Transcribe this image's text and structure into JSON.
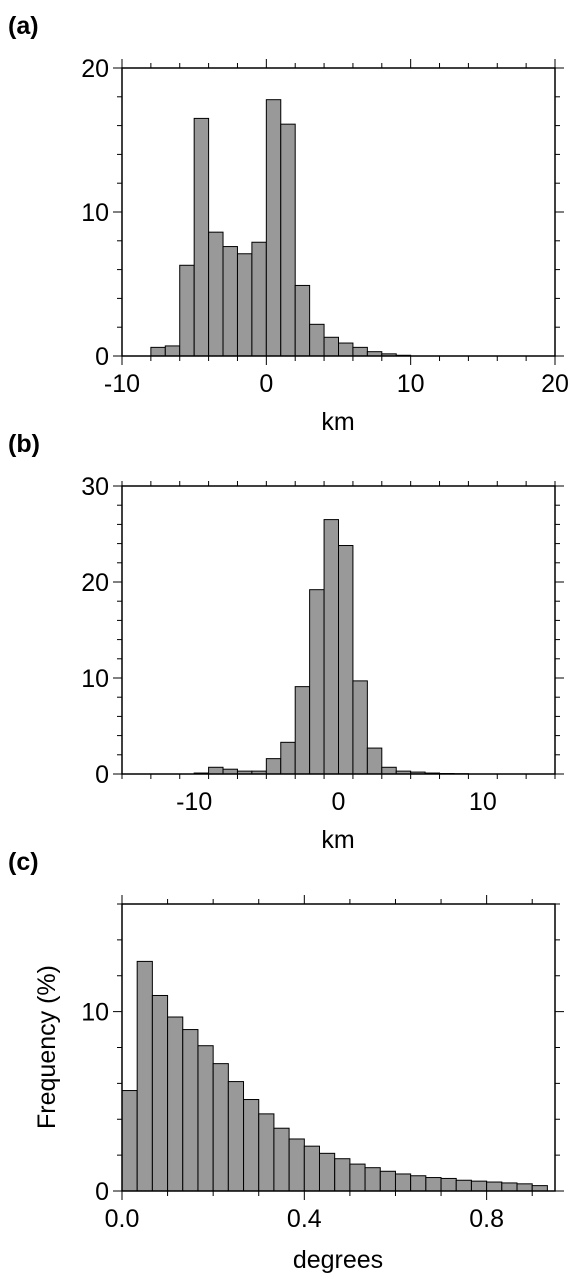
{
  "chart_data": [
    {
      "type": "bar",
      "panel": "(a)",
      "xlabel": "km",
      "ylabel": "",
      "xlim": [
        -10,
        20
      ],
      "ylim": [
        0,
        20
      ],
      "xticks": [
        -10,
        0,
        10,
        20
      ],
      "yticks": [
        0,
        10,
        20
      ],
      "xminor": 2,
      "yminor": 2,
      "bin_width": 1,
      "bin_starts": [
        -8,
        -7,
        -6,
        -5,
        -4,
        -3,
        -2,
        -1,
        0,
        1,
        2,
        3,
        4,
        5,
        6,
        7,
        8,
        9
      ],
      "values": [
        0.6,
        0.7,
        6.3,
        16.5,
        8.6,
        7.6,
        7.1,
        7.9,
        17.8,
        16.1,
        4.9,
        2.2,
        1.3,
        0.9,
        0.6,
        0.3,
        0.15,
        0.05
      ]
    },
    {
      "type": "bar",
      "panel": "(b)",
      "xlabel": "km",
      "ylabel": "",
      "xlim": [
        -15,
        15
      ],
      "ylim": [
        0,
        30
      ],
      "xticks": [
        -10,
        0,
        10
      ],
      "yticks": [
        0,
        10,
        20,
        30
      ],
      "xminor": 2,
      "yminor": 2,
      "bin_width": 1,
      "bin_starts": [
        -10,
        -9,
        -8,
        -7,
        -6,
        -5,
        -4,
        -3,
        -2,
        -1,
        0,
        1,
        2,
        3,
        4,
        5,
        6,
        7,
        8
      ],
      "values": [
        0.1,
        0.7,
        0.5,
        0.3,
        0.3,
        1.6,
        3.3,
        9.1,
        19.2,
        26.5,
        23.8,
        9.7,
        2.7,
        0.7,
        0.3,
        0.2,
        0.1,
        0.05,
        0.03
      ]
    },
    {
      "type": "bar",
      "panel": "(c)",
      "xlabel": "degrees",
      "ylabel": "Frequency (%)",
      "xlim": [
        0,
        0.95
      ],
      "ylim": [
        0,
        16
      ],
      "xticks": [
        0.0,
        0.4,
        0.8
      ],
      "xtick_labels": [
        "0.0",
        "0.4",
        "0.8"
      ],
      "yticks": [
        0,
        10
      ],
      "xminor": 0.1,
      "yminor": 2,
      "bin_width": 0.0333,
      "bin_starts": [
        0.0,
        0.0333,
        0.0667,
        0.1,
        0.1333,
        0.1667,
        0.2,
        0.2333,
        0.2667,
        0.3,
        0.3333,
        0.3667,
        0.4,
        0.4333,
        0.4667,
        0.5,
        0.5333,
        0.5667,
        0.6,
        0.6333,
        0.6667,
        0.7,
        0.7333,
        0.7667,
        0.8,
        0.8333,
        0.8667,
        0.9
      ],
      "values": [
        5.6,
        12.8,
        10.9,
        9.7,
        9.0,
        8.1,
        7.1,
        6.1,
        5.1,
        4.3,
        3.5,
        2.9,
        2.5,
        2.1,
        1.8,
        1.5,
        1.3,
        1.1,
        0.95,
        0.85,
        0.75,
        0.7,
        0.6,
        0.55,
        0.5,
        0.45,
        0.4,
        0.3
      ]
    }
  ]
}
